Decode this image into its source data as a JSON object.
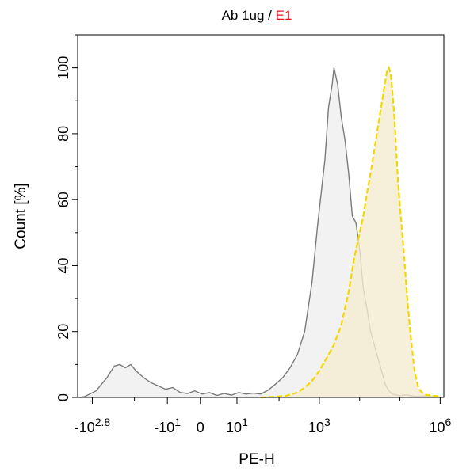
{
  "chart_data": {
    "type": "area",
    "title": {
      "prefix": "Ab 1ug / ",
      "highlight": "E1",
      "highlight_color": "#e8141c"
    },
    "xlabel": "PE-H",
    "ylabel": "Count [%]",
    "ylim": [
      0,
      110
    ],
    "y_ticks": [
      "0",
      "20",
      "40",
      "60",
      "80",
      "100"
    ],
    "x_scale": "biexponential",
    "x_ticks": [
      {
        "base": "-10",
        "exp": "2.8"
      },
      {
        "base": "-10",
        "exp": "1"
      },
      {
        "base": "0",
        "exp": ""
      },
      {
        "base": "10",
        "exp": "1"
      },
      {
        "base": "10",
        "exp": "3"
      },
      {
        "base": "10",
        "exp": "6"
      }
    ],
    "series": [
      {
        "stroke": "#7a7a7a",
        "fill": "#efefef",
        "dash": false,
        "points": [
          [
            0.005,
            0
          ],
          [
            0.02,
            0.3
          ],
          [
            0.05,
            2
          ],
          [
            0.08,
            6
          ],
          [
            0.1,
            9.5
          ],
          [
            0.115,
            10
          ],
          [
            0.13,
            9
          ],
          [
            0.145,
            10
          ],
          [
            0.16,
            8
          ],
          [
            0.18,
            6
          ],
          [
            0.2,
            4.5
          ],
          [
            0.22,
            3.5
          ],
          [
            0.24,
            2.5
          ],
          [
            0.26,
            3
          ],
          [
            0.28,
            1.5
          ],
          [
            0.3,
            1.2
          ],
          [
            0.32,
            2
          ],
          [
            0.34,
            1
          ],
          [
            0.36,
            1.5
          ],
          [
            0.38,
            0.6
          ],
          [
            0.4,
            1.2
          ],
          [
            0.42,
            0.7
          ],
          [
            0.44,
            1.5
          ],
          [
            0.46,
            1
          ],
          [
            0.48,
            1.3
          ],
          [
            0.5,
            1
          ],
          [
            0.52,
            2.2
          ],
          [
            0.54,
            4
          ],
          [
            0.56,
            6
          ],
          [
            0.58,
            9
          ],
          [
            0.6,
            13
          ],
          [
            0.62,
            20
          ],
          [
            0.64,
            35
          ],
          [
            0.655,
            52
          ],
          [
            0.665,
            62
          ],
          [
            0.675,
            72
          ],
          [
            0.685,
            88
          ],
          [
            0.695,
            95
          ],
          [
            0.7,
            100
          ],
          [
            0.71,
            95
          ],
          [
            0.72,
            85
          ],
          [
            0.73,
            78
          ],
          [
            0.74,
            68
          ],
          [
            0.75,
            55
          ],
          [
            0.76,
            53
          ],
          [
            0.77,
            45
          ],
          [
            0.78,
            33
          ],
          [
            0.79,
            27
          ],
          [
            0.8,
            20
          ],
          [
            0.81,
            16
          ],
          [
            0.82,
            12
          ],
          [
            0.83,
            8
          ],
          [
            0.84,
            4
          ],
          [
            0.85,
            2
          ],
          [
            0.86,
            1
          ],
          [
            0.88,
            0.5
          ],
          [
            0.9,
            0.8
          ],
          [
            0.92,
            0.3
          ],
          [
            0.95,
            0.4
          ],
          [
            0.98,
            0.2
          ]
        ]
      },
      {
        "stroke": "#f3d800",
        "fill": "#f4ecd2",
        "dash": true,
        "points": [
          [
            0.5,
            0
          ],
          [
            0.54,
            0.2
          ],
          [
            0.57,
            0.5
          ],
          [
            0.6,
            1.5
          ],
          [
            0.62,
            3
          ],
          [
            0.64,
            5
          ],
          [
            0.66,
            8
          ],
          [
            0.68,
            12
          ],
          [
            0.7,
            16
          ],
          [
            0.72,
            22
          ],
          [
            0.74,
            32
          ],
          [
            0.755,
            42
          ],
          [
            0.77,
            50
          ],
          [
            0.78,
            55
          ],
          [
            0.79,
            62
          ],
          [
            0.8,
            68
          ],
          [
            0.81,
            75
          ],
          [
            0.82,
            82
          ],
          [
            0.83,
            89
          ],
          [
            0.84,
            96
          ],
          [
            0.845,
            99
          ],
          [
            0.85,
            100
          ],
          [
            0.855,
            98
          ],
          [
            0.86,
            92
          ],
          [
            0.865,
            85
          ],
          [
            0.87,
            75
          ],
          [
            0.875,
            65
          ],
          [
            0.88,
            58
          ],
          [
            0.89,
            45
          ],
          [
            0.9,
            30
          ],
          [
            0.91,
            18
          ],
          [
            0.92,
            8
          ],
          [
            0.93,
            3
          ],
          [
            0.94,
            1.5
          ],
          [
            0.95,
            0.8
          ],
          [
            0.97,
            0.5
          ],
          [
            0.99,
            0.3
          ]
        ]
      }
    ]
  }
}
